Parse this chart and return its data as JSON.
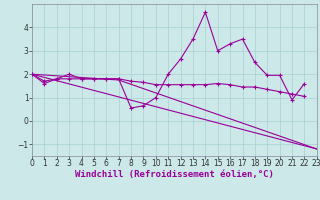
{
  "background_color": "#cce8e8",
  "grid_color": "#a8d0d0",
  "line_color": "#990099",
  "axis_color": "#666699",
  "xlim": [
    0,
    23
  ],
  "ylim": [
    -1.5,
    5.0
  ],
  "xticks": [
    0,
    1,
    2,
    3,
    4,
    5,
    6,
    7,
    8,
    9,
    10,
    11,
    12,
    13,
    14,
    15,
    16,
    17,
    18,
    19,
    20,
    21,
    22,
    23
  ],
  "yticks": [
    -1,
    0,
    1,
    2,
    3,
    4
  ],
  "line1_x": [
    0,
    1,
    2,
    3,
    4,
    5,
    6,
    7,
    8,
    9,
    10,
    11,
    12,
    13,
    14,
    15,
    16,
    17,
    18,
    19,
    20,
    21,
    22
  ],
  "line1_y": [
    2.0,
    1.6,
    1.8,
    2.0,
    1.8,
    1.8,
    1.8,
    1.8,
    0.55,
    0.65,
    1.0,
    2.0,
    2.65,
    3.5,
    4.65,
    3.0,
    3.3,
    3.5,
    2.5,
    1.95,
    1.95,
    0.9,
    1.6
  ],
  "line2_x": [
    0,
    1,
    2,
    3,
    4,
    5,
    6,
    7,
    8,
    9,
    10,
    11,
    12,
    13,
    14,
    15,
    16,
    17,
    18,
    19,
    20,
    21,
    22
  ],
  "line2_y": [
    2.0,
    1.7,
    1.8,
    1.8,
    1.8,
    1.8,
    1.8,
    1.8,
    1.7,
    1.65,
    1.55,
    1.55,
    1.55,
    1.55,
    1.55,
    1.6,
    1.55,
    1.45,
    1.45,
    1.35,
    1.25,
    1.15,
    1.05
  ],
  "line3_x": [
    0,
    23
  ],
  "line3_y": [
    2.0,
    -1.2
  ],
  "line4_x": [
    0,
    7,
    23
  ],
  "line4_y": [
    2.0,
    1.75,
    -1.2
  ],
  "xlabel": "Windchill (Refroidissement éolien,°C)",
  "font_size_label": 6.5,
  "font_size_tick": 5.5
}
